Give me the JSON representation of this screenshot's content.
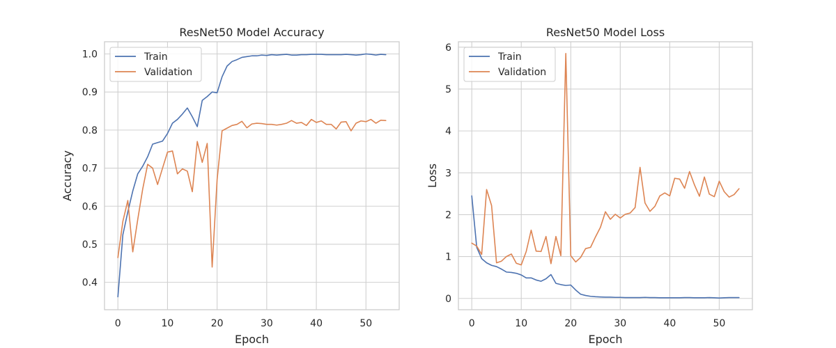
{
  "colors": {
    "train": "#4c72b0",
    "validation": "#dd8452",
    "grid": "#d0d0d0",
    "frame": "#cccccc"
  },
  "chart_data": [
    {
      "type": "line",
      "title": "ResNet50 Model Accuracy",
      "xlabel": "Epoch",
      "ylabel": "Accuracy",
      "xlim": [
        -2.7,
        56.7
      ],
      "ylim": [
        0.328,
        1.032
      ],
      "xticks": [
        0,
        10,
        20,
        30,
        40,
        50
      ],
      "xtick_labels": [
        "0",
        "10",
        "20",
        "30",
        "40",
        "50"
      ],
      "yticks": [
        0.4,
        0.5,
        0.6,
        0.7,
        0.8,
        0.9,
        1.0
      ],
      "ytick_labels": [
        "0.4",
        "0.5",
        "0.6",
        "0.7",
        "0.8",
        "0.9",
        "1.0"
      ],
      "grid": true,
      "legend": "upper left",
      "series": [
        {
          "name": "Train",
          "color": "#4c72b0",
          "values": [
            0.362,
            0.525,
            0.585,
            0.64,
            0.685,
            0.705,
            0.73,
            0.763,
            0.767,
            0.771,
            0.791,
            0.818,
            0.828,
            0.842,
            0.858,
            0.835,
            0.809,
            0.878,
            0.888,
            0.9,
            0.898,
            0.94,
            0.968,
            0.98,
            0.985,
            0.991,
            0.993,
            0.995,
            0.995,
            0.997,
            0.996,
            0.998,
            0.997,
            0.998,
            0.999,
            0.997,
            0.997,
            0.998,
            0.998,
            0.999,
            0.999,
            0.999,
            0.998,
            0.998,
            0.998,
            0.998,
            0.999,
            0.998,
            0.997,
            0.998,
            1.0,
            0.999,
            0.997,
            0.999,
            0.998
          ]
        },
        {
          "name": "Validation",
          "color": "#dd8452",
          "values": [
            0.465,
            0.56,
            0.615,
            0.48,
            0.565,
            0.645,
            0.71,
            0.7,
            0.657,
            0.7,
            0.742,
            0.745,
            0.685,
            0.698,
            0.692,
            0.638,
            0.77,
            0.715,
            0.765,
            0.44,
            0.67,
            0.798,
            0.805,
            0.812,
            0.815,
            0.823,
            0.806,
            0.816,
            0.818,
            0.817,
            0.815,
            0.815,
            0.813,
            0.815,
            0.818,
            0.825,
            0.818,
            0.82,
            0.812,
            0.828,
            0.82,
            0.824,
            0.815,
            0.815,
            0.803,
            0.821,
            0.822,
            0.798,
            0.818,
            0.824,
            0.822,
            0.828,
            0.818,
            0.826,
            0.825
          ]
        }
      ]
    },
    {
      "type": "line",
      "title": "ResNet50 Model Loss",
      "xlabel": "Epoch",
      "ylabel": "Loss",
      "xlim": [
        -2.7,
        56.7
      ],
      "ylim": [
        -0.27,
        6.13
      ],
      "xticks": [
        0,
        10,
        20,
        30,
        40,
        50
      ],
      "xtick_labels": [
        "0",
        "10",
        "20",
        "30",
        "40",
        "50"
      ],
      "yticks": [
        0,
        1,
        2,
        3,
        4,
        5,
        6
      ],
      "ytick_labels": [
        "0",
        "1",
        "2",
        "3",
        "4",
        "5",
        "6"
      ],
      "grid": true,
      "legend": "upper left",
      "series": [
        {
          "name": "Train",
          "color": "#4c72b0",
          "values": [
            2.45,
            1.22,
            0.95,
            0.85,
            0.79,
            0.76,
            0.7,
            0.63,
            0.62,
            0.6,
            0.56,
            0.49,
            0.49,
            0.44,
            0.41,
            0.47,
            0.57,
            0.36,
            0.33,
            0.31,
            0.32,
            0.2,
            0.1,
            0.07,
            0.05,
            0.04,
            0.035,
            0.03,
            0.03,
            0.025,
            0.025,
            0.02,
            0.02,
            0.02,
            0.02,
            0.025,
            0.02,
            0.02,
            0.015,
            0.015,
            0.015,
            0.015,
            0.015,
            0.02,
            0.02,
            0.015,
            0.015,
            0.015,
            0.02,
            0.015,
            0.01,
            0.015,
            0.02,
            0.02,
            0.02
          ]
        },
        {
          "name": "Validation",
          "color": "#dd8452",
          "values": [
            1.32,
            1.25,
            1.05,
            2.6,
            2.22,
            0.85,
            0.89,
            1.0,
            1.06,
            0.84,
            0.8,
            1.12,
            1.63,
            1.13,
            1.12,
            1.48,
            0.83,
            1.48,
            1.02,
            5.85,
            1.02,
            0.87,
            0.98,
            1.19,
            1.22,
            1.47,
            1.7,
            2.07,
            1.89,
            2.01,
            1.92,
            2.01,
            2.04,
            2.17,
            3.13,
            2.28,
            2.08,
            2.2,
            2.45,
            2.52,
            2.45,
            2.87,
            2.85,
            2.63,
            3.03,
            2.71,
            2.44,
            2.9,
            2.49,
            2.43,
            2.8,
            2.55,
            2.42,
            2.48,
            2.62
          ]
        }
      ]
    }
  ]
}
